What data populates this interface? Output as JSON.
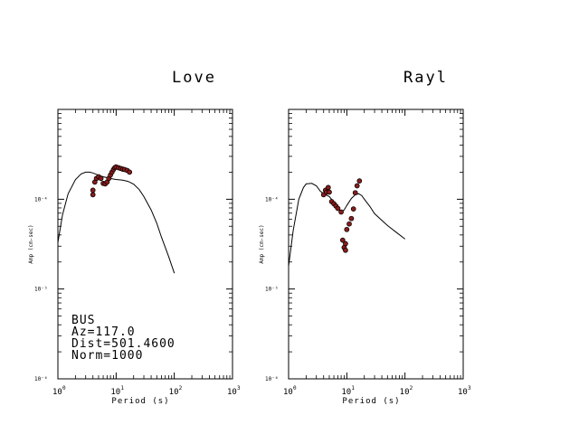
{
  "chart_data": [
    {
      "type": "scatter",
      "title": "Love",
      "xlabel": "Period (s)",
      "ylabel": "Amp (cm-sec)",
      "xscale": "log",
      "yscale": "log",
      "xlim": [
        1,
        1000
      ],
      "ylim": [
        1e-06,
        0.001
      ],
      "x_tick_labels": [
        {
          "base": "10",
          "exp": "0"
        },
        {
          "base": "10",
          "exp": "1"
        },
        {
          "base": "10",
          "exp": "2"
        },
        {
          "base": "10",
          "exp": "3"
        }
      ],
      "y_tick_labels": [
        "10⁻⁴",
        "10⁻⁵",
        "10⁻⁶"
      ],
      "y_tick_values": [
        0.0001,
        1e-05,
        1e-06
      ],
      "series": [
        {
          "kind": "line",
          "x": [
            1.0,
            1.2,
            1.5,
            2.0,
            2.5,
            3.0,
            3.5,
            4.0,
            5.0,
            6.0,
            8.0,
            10.0,
            13.0,
            16.0,
            20.0,
            25.0,
            30.0,
            40.0,
            50.0,
            60.0,
            80.0,
            100.0
          ],
          "y": [
            3.3e-05,
            6.7e-05,
            0.000115,
            0.000165,
            0.000191,
            0.0002,
            0.0002,
            0.000196,
            0.000185,
            0.000178,
            0.00017,
            0.000166,
            0.000163,
            0.000158,
            0.000147,
            0.000128,
            0.000107,
            7.6e-05,
            5.4e-05,
            3.8e-05,
            2.3e-05,
            1.5e-05
          ]
        },
        {
          "kind": "points",
          "x": [
            4.0,
            4.0,
            4.3,
            4.6,
            5.0,
            5.5,
            6.0,
            6.5,
            7.0,
            7.5,
            8.0,
            8.5,
            9.0,
            9.5,
            10.0,
            11.0,
            12.0,
            13.0,
            14.0,
            15.5,
            17.0
          ],
          "y": [
            0.000112,
            0.000126,
            0.000155,
            0.00017,
            0.000178,
            0.00017,
            0.00015,
            0.000148,
            0.000155,
            0.00017,
            0.000186,
            0.0002,
            0.000214,
            0.000224,
            0.000229,
            0.000224,
            0.00022,
            0.000216,
            0.000214,
            0.000209,
            0.0002
          ]
        }
      ]
    },
    {
      "type": "scatter",
      "title": "Rayl",
      "xlabel": "Period (s)",
      "ylabel": "Amp (cm-sec)",
      "xscale": "log",
      "yscale": "log",
      "xlim": [
        1,
        1000
      ],
      "ylim": [
        1e-06,
        0.001
      ],
      "x_tick_labels": [
        {
          "base": "10",
          "exp": "0"
        },
        {
          "base": "10",
          "exp": "1"
        },
        {
          "base": "10",
          "exp": "2"
        },
        {
          "base": "10",
          "exp": "3"
        }
      ],
      "y_tick_labels": [
        "10⁻⁴",
        "10⁻⁵",
        "10⁻⁶"
      ],
      "y_tick_values": [
        0.0001,
        1e-05,
        1e-06
      ],
      "series": [
        {
          "kind": "line",
          "x": [
            1.0,
            1.2,
            1.5,
            1.8,
            2.0,
            2.5,
            3.0,
            3.5,
            4.0,
            5.0,
            6.0,
            7.0,
            8.0,
            9.0,
            10.0,
            12.0,
            14.0,
            16.0,
            18.0,
            20.0,
            25.0,
            30.0,
            40.0,
            50.0,
            70.0,
            100.0
          ],
          "y": [
            1.8e-05,
            4.5e-05,
            0.0001,
            0.000135,
            0.000148,
            0.00015,
            0.000141,
            0.000123,
            0.000115,
            0.000107,
            9.3e-05,
            7.9e-05,
            7.2e-05,
            7.6e-05,
            8.5e-05,
            0.000102,
            0.000112,
            0.000115,
            0.00011,
            0.0001,
            8.3e-05,
            6.9e-05,
            5.8e-05,
            5.1e-05,
            4.3e-05,
            3.6e-05
          ]
        },
        {
          "kind": "points",
          "x": [
            4.0,
            4.3,
            4.5,
            4.8,
            5.0,
            5.5,
            6.0,
            6.5,
            7.0,
            8.0,
            8.5,
            9.0,
            9.5,
            9.5,
            10.0,
            11.0,
            12.0,
            13.0,
            14.0,
            15.0,
            16.5
          ],
          "y": [
            0.000112,
            0.000126,
            0.00012,
            0.000135,
            0.00012,
            9.4e-05,
            8.9e-05,
            8.4e-05,
            7.9e-05,
            7.2e-05,
            3.5e-05,
            2.9e-05,
            3.2e-05,
            2.7e-05,
            4.6e-05,
            5.3e-05,
            6.1e-05,
            7.8e-05,
            0.000118,
            0.000141,
            0.00016
          ]
        }
      ],
      "marker_color": "#8a1c1c"
    }
  ],
  "info": {
    "station": "BUS",
    "az": "Az=117.0",
    "dist": "Dist=501.4600",
    "norm": "Norm=1000"
  }
}
